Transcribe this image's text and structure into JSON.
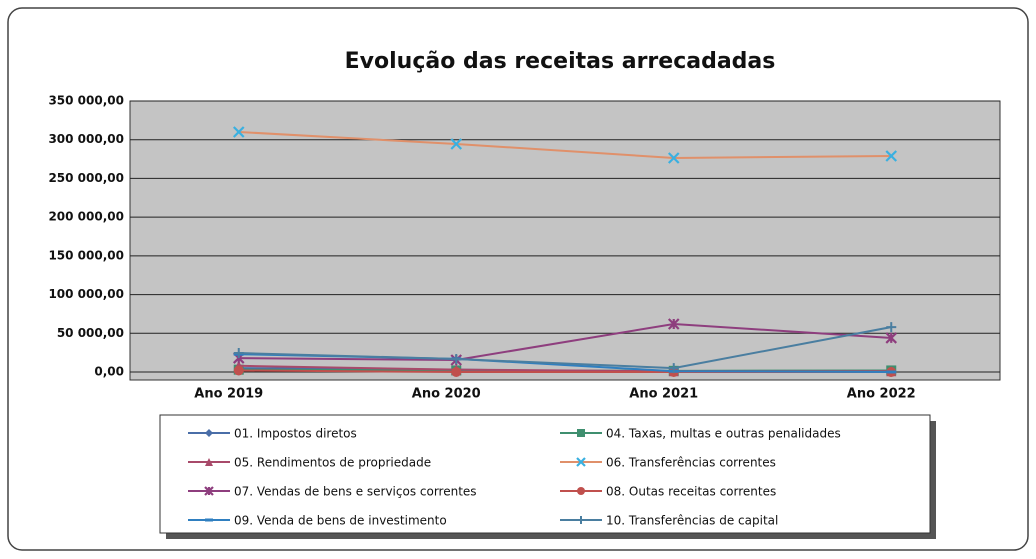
{
  "chart_data": {
    "type": "line",
    "title": "Evolução das receitas arrecadadas",
    "categories": [
      "Ano 2019",
      "Ano 2020",
      "Ano 2021",
      "Ano 2022"
    ],
    "ylim": [
      0,
      350000
    ],
    "yticks": [
      {
        "value": 0,
        "label": "0,00"
      },
      {
        "value": 50000,
        "label": "50 000,00"
      },
      {
        "value": 100000,
        "label": "100 000,00"
      },
      {
        "value": 150000,
        "label": "150 000,00"
      },
      {
        "value": 200000,
        "label": "200 000,00"
      },
      {
        "value": 250000,
        "label": "250 000,00"
      },
      {
        "value": 300000,
        "label": "300 000,00"
      },
      {
        "value": 350000,
        "label": "350 000,00"
      }
    ],
    "grid": true,
    "plot_background": "#c4c4c4",
    "legend": "bottom",
    "series": [
      {
        "name": "01. Impostos diretos",
        "color": "#4a6ea8",
        "marker": "diamond",
        "values": [
          5000,
          3000,
          0,
          0
        ]
      },
      {
        "name": "04. Taxas, multas e outras penalidades",
        "color": "#3f8f6f",
        "marker": "square",
        "values": [
          3000,
          2000,
          1500,
          2000
        ]
      },
      {
        "name": "05. Rendimentos de propriedade",
        "color": "#a84a6a",
        "marker": "triangle",
        "values": [
          8000,
          3000,
          1000,
          1000
        ]
      },
      {
        "name": "06. Transferências correntes",
        "color": "#e0906a",
        "marker_color": "#3ab0e0",
        "marker": "x",
        "values": [
          310000,
          294500,
          276400,
          279000
        ]
      },
      {
        "name": "07. Vendas de bens e serviços correntes",
        "color": "#8e3e7e",
        "marker": "star",
        "values": [
          18000,
          15500,
          62000,
          44000
        ]
      },
      {
        "name": "08. Outas receitas correntes",
        "color": "#c0504d",
        "marker": "circle",
        "values": [
          2000,
          0,
          0,
          0
        ]
      },
      {
        "name": "09. Venda de bens de investimento",
        "color": "#2f7fc0",
        "marker": "dash",
        "values": [
          23000,
          17000,
          1000,
          0
        ]
      },
      {
        "name": "10. Transferências de capital",
        "color": "#4a7ea0",
        "marker": "plus",
        "values": [
          24500,
          16800,
          5000,
          58000
        ]
      }
    ]
  }
}
